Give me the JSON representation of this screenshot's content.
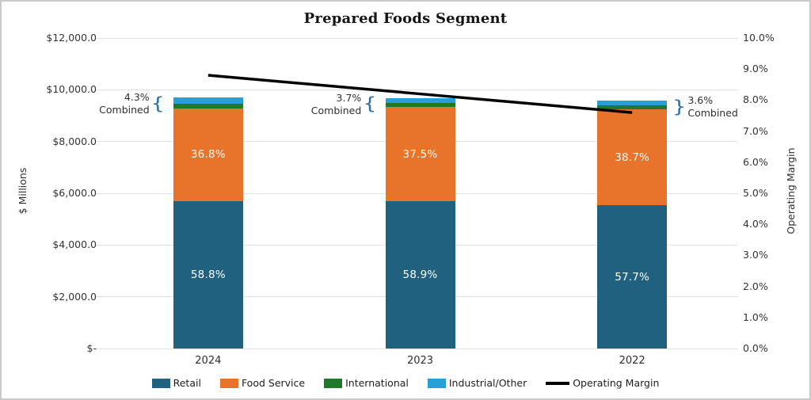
{
  "chart_data": {
    "type": "combo-stacked-bar-line",
    "title": "Prepared Foods Segment",
    "categories": [
      "2024",
      "2023",
      "2022"
    ],
    "left_axis": {
      "title": "$ Millions",
      "ticks": [
        0,
        2000,
        4000,
        6000,
        8000,
        10000,
        12000
      ],
      "tick_labels": [
        "$-",
        "$2,000.0",
        "$4,000.0",
        "$6,000.0",
        "$8,000.0",
        "$10,000.0",
        "$12,000.0"
      ],
      "max": 12000,
      "grid": true
    },
    "right_axis": {
      "title": "Operating Margin",
      "ticks": [
        0,
        1,
        2,
        3,
        4,
        5,
        6,
        7,
        8,
        9,
        10
      ],
      "tick_labels": [
        "0.0%",
        "1.0%",
        "2.0%",
        "3.0%",
        "4.0%",
        "5.0%",
        "6.0%",
        "7.0%",
        "8.0%",
        "9.0%",
        "10.0%"
      ],
      "max": 10
    },
    "totals_musd": [
      9700,
      9670,
      9580
    ],
    "bar_series": [
      {
        "name": "Retail",
        "color": "#1f617f",
        "pct": [
          58.8,
          58.9,
          57.7
        ],
        "labels": [
          "58.8%",
          "58.9%",
          "57.7%"
        ]
      },
      {
        "name": "Food Service",
        "color": "#e8742c",
        "pct": [
          36.8,
          37.5,
          38.7
        ],
        "labels": [
          "36.8%",
          "37.5%",
          "38.7%"
        ]
      },
      {
        "name": "International",
        "color": "#1e7a28",
        "pct": [
          1.9,
          1.7,
          1.6
        ],
        "labels": [
          "",
          "",
          ""
        ]
      },
      {
        "name": "Industrial/Other",
        "color": "#27a0d8",
        "pct": [
          2.4,
          2.0,
          2.0
        ],
        "labels": [
          "",
          "",
          ""
        ]
      }
    ],
    "combined_annotations": [
      {
        "pct_label": "4.3%",
        "word": "Combined",
        "side": "left"
      },
      {
        "pct_label": "3.7%",
        "word": "Combined",
        "side": "left"
      },
      {
        "pct_label": "3.6%",
        "word": "Combined",
        "side": "right"
      }
    ],
    "line_series": {
      "name": "Operating Margin",
      "color": "#000000",
      "values": [
        8.8,
        8.2,
        7.6
      ]
    },
    "legend": [
      {
        "label": "Retail",
        "color": "#1f617f",
        "type": "box"
      },
      {
        "label": "Food Service",
        "color": "#e8742c",
        "type": "box"
      },
      {
        "label": "International",
        "color": "#1e7a28",
        "type": "box"
      },
      {
        "label": "Industrial/Other",
        "color": "#27a0d8",
        "type": "box"
      },
      {
        "label": "Operating Margin",
        "color": "#000000",
        "type": "line"
      }
    ],
    "annotation_brace_color": "#2b6fa3"
  }
}
